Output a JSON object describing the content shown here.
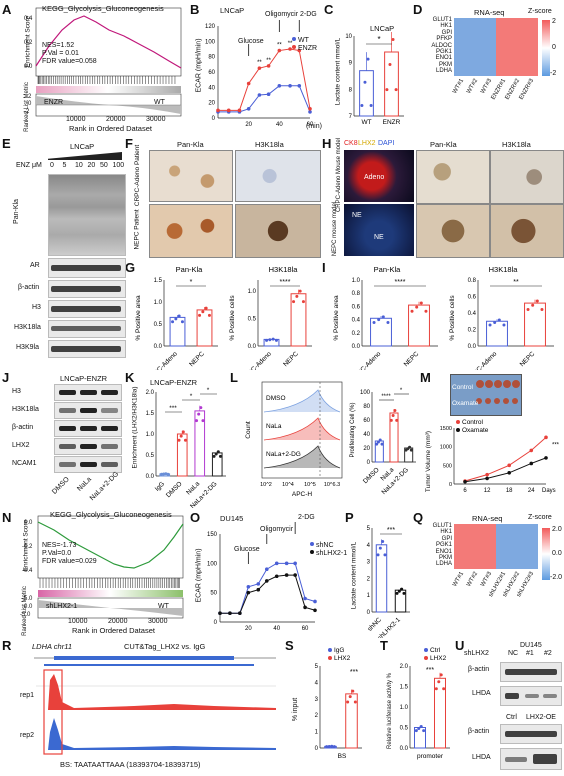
{
  "panels": [
    "A",
    "B",
    "C",
    "D",
    "E",
    "F",
    "G",
    "H",
    "I",
    "J",
    "K",
    "L",
    "M",
    "N",
    "O",
    "P",
    "Q",
    "R",
    "S",
    "T",
    "U"
  ],
  "A": {
    "title": "KEGG_Glycolysis_Gluconeogenesis",
    "stats": [
      "NES=1.52",
      "P.Val = 0.01",
      "FDR value=0.058"
    ],
    "ylabel_top": "Enrichment Score",
    "ylabel_bottom": "Ranked List Metric",
    "left_group": "ENZR",
    "right_group": "WT",
    "xticks": [
      "10000",
      "20000",
      "30000"
    ],
    "xlabel": "Rank in Ordered Dataset",
    "y_ticks_top": [
      "0.4",
      "0.2",
      "0.0"
    ],
    "y_ticks_bottom": [
      "2",
      "0",
      "-2"
    ]
  },
  "B": {
    "title": "LNCaP",
    "ylabel": "ECAR (mpH/min)",
    "xlabel_unit": "(min)",
    "annotations": [
      "Glucose",
      "Oligomycir",
      "2-DG"
    ],
    "stars": "**",
    "legend": [
      "WT",
      "ENZR"
    ],
    "colors": {
      "WT": "#4a5fd6",
      "ENZR": "#e8413b"
    },
    "chart_data": {
      "type": "line",
      "x": [
        0,
        7,
        14,
        20,
        27,
        33,
        40,
        47,
        53,
        60
      ],
      "series": [
        {
          "name": "WT",
          "values": [
            8,
            8,
            8,
            12,
            30,
            31,
            42,
            42,
            42,
            8
          ]
        },
        {
          "name": "ENZR",
          "values": [
            10,
            10,
            10,
            45,
            65,
            68,
            88,
            90,
            88,
            12
          ]
        }
      ],
      "ylim": [
        0,
        120
      ],
      "xticks": [
        "20",
        "40",
        "60"
      ],
      "yticks": [
        "0",
        "20",
        "40",
        "60",
        "80",
        "100",
        "120"
      ]
    }
  },
  "C": {
    "title": "LNCaP",
    "ylabel": "Lactate content mmol/L",
    "sig": "*",
    "chart_data": {
      "type": "bar",
      "categories": [
        "WT",
        "ENZR"
      ],
      "values": [
        8.7,
        9.4
      ],
      "ylim": [
        7,
        10
      ],
      "yticks": [
        "7",
        "8",
        "9",
        "10"
      ]
    }
  },
  "D": {
    "title": "RNA-seq",
    "zlabel": "Z-score",
    "zticks": [
      "2",
      "0",
      "-2"
    ],
    "rows": [
      "GLUT1",
      "HK1",
      "GPI",
      "PFKP",
      "ALDOC",
      "PGK1",
      "ENO1",
      "PKM",
      "LDHA"
    ],
    "cols": [
      "WT#1",
      "WT#2",
      "WT#3",
      "ENZR#1",
      "ENZR#2",
      "ENZR#3"
    ]
  },
  "E": {
    "title": "LNCaP",
    "enz_label": "ENZ μM",
    "doses": [
      "0",
      "5",
      "10",
      "20",
      "50",
      "100"
    ],
    "rows": [
      "Pan-Kla",
      "AR",
      "β-actin",
      "H3",
      "H3K18la",
      "H3K9la"
    ]
  },
  "F": {
    "cols": [
      "Pan-Kla",
      "H3K18la"
    ],
    "rows": [
      "CRPC-Adeno Patient",
      "NEPC Patient"
    ]
  },
  "G": {
    "charts": [
      {
        "title": "Pan-Kla",
        "ylabel": "% Positive area",
        "sig": "*",
        "categories": [
          "CRPC-Adeno",
          "NEPC"
        ],
        "values": [
          0.65,
          0.82
        ],
        "ylim": [
          0,
          1.5
        ],
        "yticks": [
          "0.0",
          "0.5",
          "1.0",
          "1.5"
        ]
      },
      {
        "title": "H3K18la",
        "ylabel": "% Positive cells",
        "sig": "****",
        "categories": [
          "CRPC-Adeno",
          "NEPC"
        ],
        "values": [
          0.12,
          0.95
        ],
        "ylim": [
          0,
          1.2
        ],
        "yticks": [
          "0.0",
          "0.5",
          "1.0"
        ]
      }
    ]
  },
  "H": {
    "if_label": [
      "CK8",
      "LHX2",
      "DAPI"
    ],
    "if_colors": [
      "#ff3b3b",
      "#ffd21f",
      "#5a7dff"
    ],
    "cols": [
      "Pan-Kla",
      "H3K18la"
    ],
    "rows": [
      "CRPC-Adeno Mouse model",
      "NEPC mouse model"
    ],
    "region_labels": [
      "Adeno",
      "NE",
      "NE"
    ]
  },
  "I": {
    "charts": [
      {
        "title": "Pan-Kla",
        "ylabel": "% Positive area",
        "sig": "****",
        "categories": [
          "CRPC-Adeno",
          "NEPC"
        ],
        "values": [
          0.42,
          0.62
        ],
        "ylim": [
          0,
          1.0
        ],
        "yticks": [
          "0.0",
          "0.2",
          "0.4",
          "0.6",
          "0.8",
          "1.0"
        ]
      },
      {
        "title": "H3K18la",
        "ylabel": "% Positive cells",
        "sig": "**",
        "categories": [
          "CRPC-Adeno",
          "NEPC"
        ],
        "values": [
          0.3,
          0.52
        ],
        "ylim": [
          0,
          0.8
        ],
        "yticks": [
          "0.0",
          "0.2",
          "0.4",
          "0.6",
          "0.8"
        ]
      }
    ]
  },
  "J": {
    "title": "LNCaP-ENZR",
    "rows": [
      "H3",
      "H3K18la",
      "β-actin",
      "LHX2",
      "NCAM1"
    ],
    "cols": [
      "DMSO",
      "NaLa",
      "NaLa+2-DG"
    ]
  },
  "K": {
    "title": "LNCaP-ENZR",
    "ylabel": "Enrichment (LHX2/H3K18la)",
    "sigs": [
      "***",
      "*",
      "*"
    ],
    "chart_data": {
      "type": "bar",
      "categories": [
        "IgG",
        "DMSO",
        "NaLa",
        "NaLa+2-DG"
      ],
      "values": [
        0.05,
        1.0,
        1.55,
        0.55
      ],
      "ylim": [
        0,
        2.0
      ],
      "yticks": [
        "0.0",
        "0.5",
        "1.0",
        "1.5",
        "2.0"
      ]
    },
    "colors": [
      "#6a8fd8",
      "#e8413b",
      "#b23ad1",
      "#222222"
    ]
  },
  "L": {
    "flow_labels": [
      "DMSO",
      "NaLa",
      "NaLa+2-DG"
    ],
    "flow_ylabel": "Count",
    "flow_xlabel": "APC-H",
    "flow_xticks": [
      "10^2",
      "10^4",
      "10^5",
      "10^6.3"
    ],
    "flow_xticks_display": [
      "10",
      "1",
      "10",
      "10",
      "10"
    ],
    "bar": {
      "ylabel": "Proliferating Cell (%)",
      "sigs": [
        "****",
        "*"
      ],
      "categories": [
        "DMSO",
        "NaLa",
        "NaLa+2-DG"
      ],
      "values": [
        30,
        70,
        20
      ],
      "ylim": [
        0,
        100
      ],
      "yticks": [
        "0",
        "20",
        "40",
        "60",
        "80",
        "100"
      ]
    }
  },
  "M": {
    "photo_labels": [
      "Control",
      "Oxamate"
    ],
    "ylabel": "Tumor Volume (mm³)",
    "xlabel": "Days",
    "legend": [
      "Control",
      "Oxamate"
    ],
    "sig": "***",
    "chart_data": {
      "type": "line",
      "x": [
        6,
        12,
        18,
        24,
        28
      ],
      "series": [
        {
          "name": "Control",
          "values": [
            80,
            250,
            500,
            900,
            1250
          ]
        },
        {
          "name": "Oxamate",
          "values": [
            60,
            150,
            300,
            550,
            700
          ]
        }
      ],
      "ylim": [
        0,
        1500
      ],
      "yticks": [
        "0",
        "500",
        "1000",
        "1500"
      ],
      "xticks": [
        "6",
        "12",
        "18",
        "24"
      ]
    }
  },
  "N": {
    "title": "KEGG_Glycolysis_Gluconeogenesis",
    "stats": [
      "NES=-1.73",
      "P.Val=0.0",
      "FDR value=0.029"
    ],
    "left_group": "shLHX2-1",
    "right_group": "WT",
    "xticks": [
      "10000",
      "20000",
      "30000"
    ],
    "xlabel": "Rank in Ordered Dataset",
    "ylabel_top": "Enrichment Score",
    "ylabel_bottom": "Ranked List Metric",
    "y_ticks_top": [
      "0.0",
      "-0.2",
      "-0.4"
    ],
    "y_ticks_bottom": [
      "5.0",
      "0.0",
      "-5.0"
    ]
  },
  "O": {
    "title": "DU145",
    "ylabel": "ECAR (mpH/min)",
    "annotations": [
      "Glucose",
      "Oligomycir",
      "2-DG"
    ],
    "legend": [
      "shNC",
      "shLHX2-1"
    ],
    "colors": {
      "shNC": "#4a5fd6",
      "shLHX2-1": "#111111"
    },
    "chart_data": {
      "type": "line",
      "x": [
        0,
        7,
        14,
        20,
        27,
        33,
        40,
        47,
        53,
        60,
        67
      ],
      "series": [
        {
          "name": "shNC",
          "values": [
            15,
            15,
            15,
            60,
            65,
            90,
            100,
            100,
            100,
            40,
            35
          ]
        },
        {
          "name": "shLHX2-1",
          "values": [
            15,
            15,
            15,
            50,
            55,
            70,
            78,
            80,
            80,
            25,
            20
          ]
        }
      ],
      "ylim": [
        0,
        150
      ],
      "yticks": [
        "0",
        "50",
        "100",
        "150"
      ],
      "xticks": [
        "20",
        "40",
        "60"
      ]
    }
  },
  "P": {
    "ylabel": "Lactate content mmol/L",
    "sig": "***",
    "chart_data": {
      "type": "bar",
      "categories": [
        "shNC",
        "shLHX2-1"
      ],
      "values": [
        4.0,
        1.3
      ],
      "ylim": [
        0,
        5
      ],
      "yticks": [
        "0",
        "1",
        "2",
        "3",
        "4",
        "5"
      ]
    }
  },
  "Q": {
    "title": "RNA-seq",
    "zlabel": "Z-score",
    "zticks": [
      "2.0",
      "0.0",
      "-2.0"
    ],
    "rows": [
      "GLUT1",
      "HK1",
      "GPI",
      "PGK1",
      "ENO1",
      "PKM",
      "LDHA"
    ],
    "cols": [
      "WT#1",
      "WT#2",
      "WT#3",
      "shLHX2#1",
      "shLHX2#2",
      "shLHX2#3"
    ]
  },
  "R": {
    "gene": "LDHA chr11",
    "track_title": "CUT&Tag_LHX2 vs. IgG",
    "tracks": [
      "rep1",
      "rep2"
    ],
    "bs": "BS:  TAATAATTAAA  (18393704-18393715)"
  },
  "S": {
    "ylabel": "% input",
    "legend": [
      "IgG",
      "LHX2"
    ],
    "sig": "***",
    "xlabel": "BS",
    "chart_data": {
      "type": "bar",
      "categories": [
        "IgG",
        "LHX2"
      ],
      "values": [
        0.1,
        3.3
      ],
      "ylim": [
        0,
        5
      ],
      "yticks": [
        "0",
        "1",
        "2",
        "3",
        "4",
        "5"
      ]
    }
  },
  "T": {
    "ylabel": "Relative luciferase activity %",
    "legend": [
      "Ctrl",
      "LHX2"
    ],
    "sig": "***",
    "xlabel": "promoter",
    "chart_data": {
      "type": "bar",
      "categories": [
        "Ctrl",
        "LHX2"
      ],
      "values": [
        0.5,
        1.7
      ],
      "ylim": [
        0,
        2.0
      ],
      "yticks": [
        "0.0",
        "0.5",
        "1.0",
        "1.5",
        "2.0"
      ]
    }
  },
  "U": {
    "cell": "DU145",
    "sh_label": "shLHX2",
    "top_cols": [
      "NC",
      "#1",
      "#2"
    ],
    "bottom_cols": [
      "Ctrl",
      "LHX2-OE"
    ],
    "rows": [
      "β-actin",
      "LHDA"
    ]
  }
}
